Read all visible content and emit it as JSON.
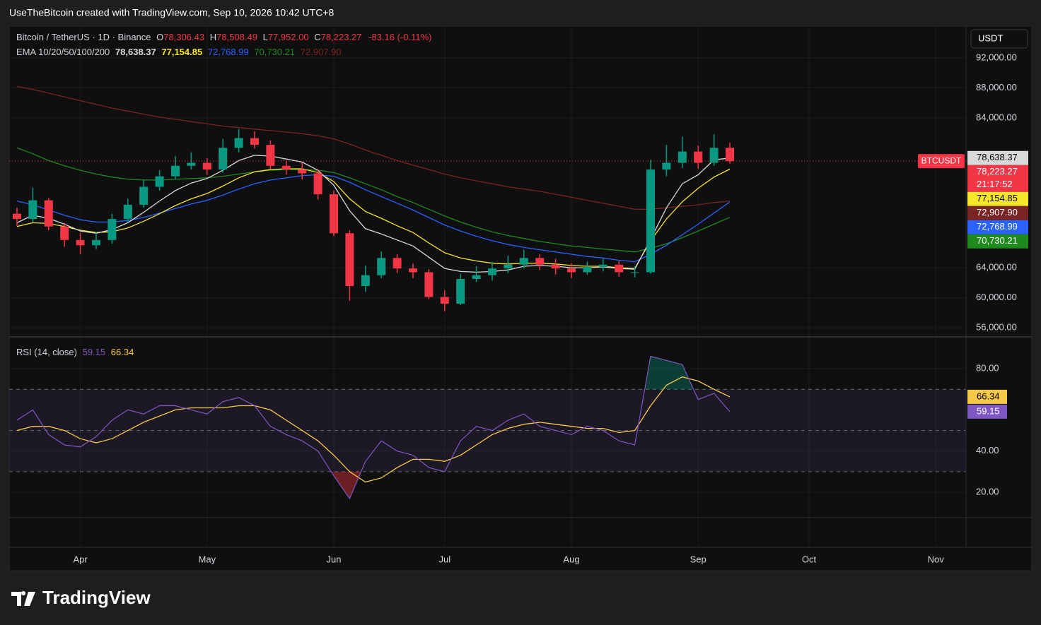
{
  "header": {
    "credit": "UseTheBitcoin created with TradingView.com, Sep 10, 2026 10:42 UTC+8",
    "brand": "TradingView"
  },
  "chart_data": {
    "type": "candlestick",
    "symbol": "Bitcoin / TetherUS · 1D · Binance",
    "ohlc": [
      {
        "label": "O",
        "value": "78,306.43"
      },
      {
        "label": "H",
        "value": "78,508.49"
      },
      {
        "label": "L",
        "value": "77,952.00"
      },
      {
        "label": "C",
        "value": "78,223.27"
      }
    ],
    "change": "-83.16 (-0.11%)",
    "currency": "USDT",
    "tag": "BTCUSDT",
    "categories": [
      null,
      null,
      null,
      null,
      "Apr",
      null,
      null,
      null,
      null,
      null,
      null,
      null,
      "May",
      null,
      null,
      null,
      null,
      null,
      null,
      null,
      "Jun",
      null,
      null,
      null,
      null,
      null,
      null,
      "Jul",
      null,
      null,
      null,
      null,
      null,
      null,
      null,
      "Aug",
      null,
      null,
      null,
      null,
      null,
      null,
      null,
      "Sep",
      null,
      null,
      null,
      null,
      null,
      null,
      "Oct",
      null,
      null,
      null,
      null,
      null,
      null,
      null,
      "Nov",
      null
    ],
    "candles": {
      "up_color": "#089981",
      "down_color": "#f23645",
      "open": [
        71200,
        70500,
        73000,
        69500,
        67700,
        67000,
        67700,
        70500,
        72400,
        74800,
        76200,
        77600,
        78000,
        77100,
        80000,
        81300,
        80400,
        77600,
        77100,
        76600,
        73800,
        68600,
        61560,
        63000,
        65300,
        63900,
        63400,
        60100,
        59200,
        62500,
        63000,
        63900,
        64400,
        65300,
        64400,
        63900,
        63400,
        64100,
        64400,
        63400,
        63400,
        77100,
        78000,
        79500,
        78000,
        80000,
        null,
        null,
        null,
        null,
        null,
        null,
        null,
        null,
        null,
        null,
        null,
        null,
        null,
        null
      ],
      "high": [
        72000,
        74700,
        73300,
        70000,
        68600,
        68800,
        71200,
        73200,
        75700,
        77000,
        78900,
        79400,
        78600,
        81200,
        82500,
        82200,
        81000,
        78300,
        78000,
        77200,
        74300,
        69000,
        64300,
        66200,
        65800,
        64600,
        63800,
        61000,
        63200,
        64200,
        64800,
        65600,
        66400,
        65800,
        65200,
        64600,
        64800,
        65200,
        64900,
        64200,
        78400,
        80400,
        81500,
        80300,
        81800,
        80700,
        null,
        null,
        null,
        null,
        null,
        null,
        null,
        null,
        null,
        null,
        null,
        null,
        null,
        null
      ],
      "low": [
        69600,
        70100,
        69000,
        66800,
        65800,
        66500,
        67200,
        70000,
        72000,
        74300,
        75800,
        77100,
        76400,
        76700,
        79400,
        79900,
        77100,
        76400,
        75800,
        73100,
        68200,
        59600,
        60800,
        62600,
        63300,
        62600,
        59800,
        58200,
        59000,
        62100,
        62300,
        63300,
        63900,
        63700,
        63100,
        62600,
        63100,
        63500,
        62800,
        62700,
        63200,
        76200,
        77300,
        77200,
        77600,
        77900,
        null,
        null,
        null,
        null,
        null,
        null,
        null,
        null,
        null,
        null,
        null,
        null,
        null,
        null
      ],
      "close": [
        70500,
        73000,
        69500,
        67700,
        67000,
        67700,
        70500,
        72400,
        74800,
        76200,
        77600,
        78000,
        77100,
        80000,
        81300,
        80400,
        77600,
        77100,
        76600,
        73800,
        68600,
        61560,
        63000,
        65300,
        63900,
        63400,
        60100,
        59200,
        62500,
        63000,
        63900,
        64400,
        65300,
        64400,
        63900,
        63400,
        64100,
        64400,
        63400,
        63400,
        77100,
        78000,
        79500,
        78000,
        80000,
        78223.27,
        null,
        null,
        null,
        null,
        null,
        null,
        null,
        null,
        null,
        null,
        null,
        null,
        null,
        null
      ],
      "last_label": "78,223.27",
      "countdown": "21:17:52"
    },
    "ema_title": "EMA 10/20/50/100/200",
    "ema": [
      {
        "color": "#d9d9d9",
        "label_text": "#000000",
        "last_label": "78,638.37",
        "values": [
          70000,
          71000,
          70600,
          69800,
          68900,
          68600,
          69100,
          70000,
          71400,
          72900,
          74300,
          75300,
          75900,
          77000,
          78300,
          79000,
          78900,
          78500,
          78100,
          77000,
          75000,
          71600,
          69200,
          68500,
          67700,
          66900,
          65400,
          63900,
          63500,
          63400,
          63500,
          63700,
          64200,
          64300,
          64200,
          64000,
          64000,
          64100,
          63900,
          63800,
          67800,
          72000,
          75200,
          76400,
          78400,
          78638.37,
          null,
          null,
          null,
          null,
          null,
          null,
          null,
          null,
          null,
          null,
          null,
          null,
          null,
          null
        ]
      },
      {
        "color": "#f5e62a",
        "label_text": "#000000",
        "last_label": "77,154.85",
        "values": [
          69500,
          70000,
          69900,
          69500,
          69000,
          68700,
          68800,
          69300,
          70200,
          71200,
          72300,
          73200,
          73900,
          74900,
          76000,
          76800,
          77100,
          77200,
          77200,
          76700,
          75500,
          73200,
          71500,
          70600,
          69600,
          68700,
          67300,
          66000,
          65300,
          64900,
          64600,
          64500,
          64600,
          64600,
          64500,
          64300,
          64200,
          64200,
          64000,
          63900,
          67600,
          70500,
          72800,
          74600,
          76100,
          77154.85,
          null,
          null,
          null,
          null,
          null,
          null,
          null,
          null,
          null,
          null,
          null,
          null,
          null,
          null
        ]
      },
      {
        "color": "#2962ff",
        "label_text": "#ffffff",
        "last_label": "72,768.99",
        "values": [
          72900,
          72400,
          71700,
          71000,
          70400,
          70100,
          70100,
          70300,
          70700,
          71300,
          71900,
          72500,
          73000,
          73700,
          74500,
          75200,
          75700,
          76000,
          76300,
          76400,
          76200,
          75400,
          74400,
          73500,
          72600,
          71700,
          70700,
          69700,
          68900,
          68200,
          67600,
          67100,
          66700,
          66400,
          66100,
          65800,
          65500,
          65300,
          65000,
          64800,
          65800,
          67000,
          68400,
          69800,
          71300,
          72768.99,
          null,
          null,
          null,
          null,
          null,
          null,
          null,
          null,
          null,
          null,
          null,
          null,
          null,
          null
        ]
      },
      {
        "color": "#1e8a1e",
        "label_text": "#ffffff",
        "last_label": "70,730.21",
        "values": [
          80000,
          79200,
          78300,
          77600,
          77000,
          76500,
          76100,
          75800,
          75700,
          75700,
          75800,
          75900,
          76000,
          76200,
          76500,
          76800,
          77000,
          77100,
          77100,
          77000,
          76700,
          76000,
          75200,
          74400,
          73500,
          72700,
          71800,
          70900,
          70100,
          69400,
          68800,
          68300,
          67900,
          67500,
          67200,
          66900,
          66700,
          66500,
          66300,
          66100,
          66600,
          67200,
          68000,
          68900,
          69800,
          70730.21,
          null,
          null,
          null,
          null,
          null,
          null,
          null,
          null,
          null,
          null,
          null,
          null,
          null,
          null
        ]
      },
      {
        "color": "#7a2323",
        "label_text": "#ffffff",
        "last_label": "72,907.90",
        "values": [
          88200,
          87800,
          87300,
          86800,
          86300,
          85800,
          85300,
          84900,
          84500,
          84100,
          83800,
          83500,
          83200,
          82900,
          82700,
          82500,
          82300,
          82100,
          81900,
          81600,
          81200,
          80500,
          79700,
          79000,
          78300,
          77700,
          77100,
          76500,
          76000,
          75600,
          75200,
          74800,
          74500,
          74200,
          73800,
          73400,
          73000,
          72600,
          72200,
          71800,
          71800,
          72000,
          72200,
          72400,
          72700,
          72907.9,
          null,
          null,
          null,
          null,
          null,
          null,
          null,
          null,
          null,
          null,
          null,
          null,
          null,
          null
        ]
      }
    ],
    "ylim": [
      54960,
      96240
    ],
    "yticks": [
      {
        "value": 56000,
        "label": "56,000.00"
      },
      {
        "value": 60000,
        "label": "60,000.00"
      },
      {
        "value": 64000,
        "label": "64,000.00"
      },
      {
        "value": 84000,
        "label": "84,000.00"
      },
      {
        "value": 88000,
        "label": "88,000.00"
      },
      {
        "value": 92000,
        "label": "92,000.00"
      }
    ],
    "grid": true,
    "rsi": {
      "title": "RSI (14, close)",
      "line": {
        "color": "#7e57c2",
        "last_label": "59.15",
        "values": [
          55,
          60,
          48,
          43,
          42,
          47,
          55,
          60,
          58,
          62,
          62,
          60,
          58,
          64,
          66,
          62,
          52,
          48,
          45,
          40,
          28,
          17,
          35,
          45,
          40,
          38,
          32,
          30,
          45,
          52,
          50,
          55,
          58,
          52,
          50,
          48,
          52,
          50,
          45,
          43,
          86,
          84,
          82,
          65,
          68,
          59.15,
          null,
          null,
          null,
          null,
          null,
          null,
          null,
          null,
          null,
          null,
          null,
          null,
          null,
          null
        ]
      },
      "ma": {
        "color": "#f7c948",
        "last_label": "66.34",
        "values": [
          50,
          52,
          52,
          50,
          46,
          44,
          46,
          50,
          54,
          57,
          60,
          61,
          61,
          61,
          62,
          62,
          60,
          55,
          50,
          45,
          38,
          30,
          25,
          27,
          32,
          36,
          36,
          35,
          38,
          43,
          48,
          51,
          53,
          54,
          53,
          52,
          51,
          51,
          49,
          50,
          62,
          72,
          76,
          74,
          70,
          66.34,
          null,
          null,
          null,
          null,
          null,
          null,
          null,
          null,
          null,
          null,
          null,
          null,
          null,
          null
        ]
      },
      "ylim": [
        7.7,
        94.4
      ],
      "yticks": [
        {
          "value": 20,
          "label": "20.00"
        },
        {
          "value": 40,
          "label": "40.00"
        },
        {
          "value": 80,
          "label": "80.00"
        }
      ],
      "bands": [
        70,
        50,
        30
      ]
    }
  }
}
